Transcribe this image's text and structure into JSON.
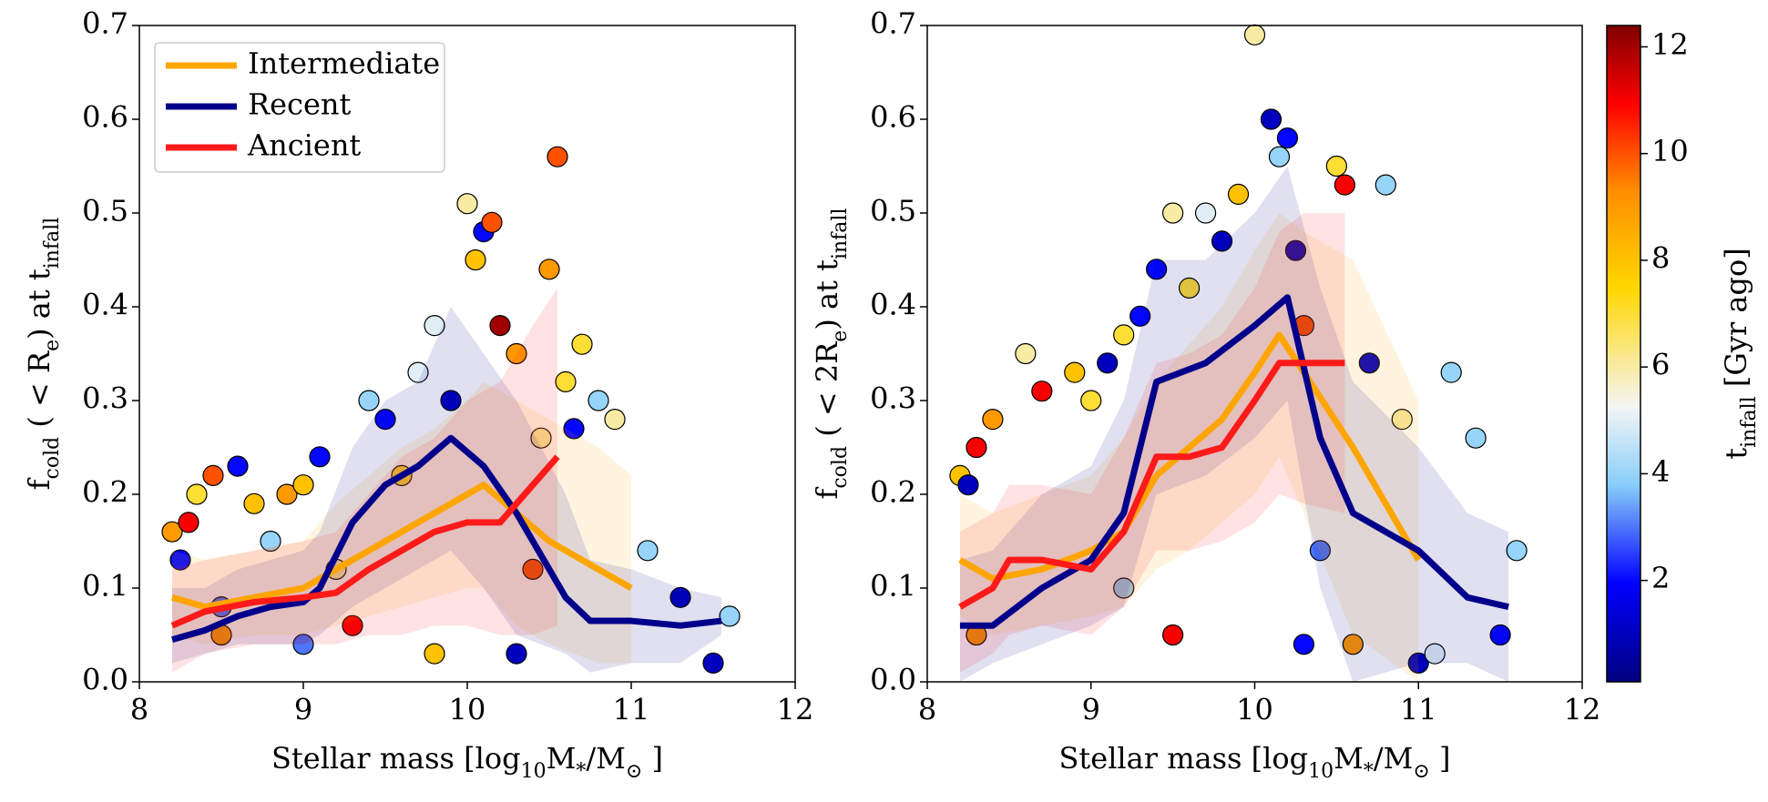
{
  "chart_data": [
    {
      "type": "scatter",
      "xlabel": [
        "Stellar mass [log",
        "10",
        "M",
        "*",
        "/M",
        "⊙",
        " ]"
      ],
      "ylabel": [
        "f",
        "cold",
        " ( < R",
        "e",
        ") at t",
        "infall"
      ],
      "xlim": [
        8,
        12
      ],
      "xticks": [
        8,
        9,
        10,
        11,
        12
      ],
      "ylim": [
        0,
        0.7
      ],
      "yticks": [
        {
          "value": 0,
          "label": "0.0"
        },
        0.1,
        0.2,
        0.3,
        0.4,
        0.5,
        0.6,
        0.7
      ],
      "legend": "upper left",
      "points": {
        "x": [
          8.2,
          8.25,
          8.3,
          8.35,
          8.45,
          8.5,
          8.6,
          8.7,
          8.8,
          8.9,
          9.0,
          9.1,
          9.2,
          9.3,
          9.4,
          9.5,
          9.6,
          9.7,
          9.8,
          9.9,
          10.0,
          10.05,
          10.1,
          10.15,
          10.2,
          10.3,
          10.4,
          10.45,
          10.5,
          10.55,
          10.6,
          10.65,
          10.7,
          10.8,
          10.9,
          11.1,
          11.3,
          11.5,
          11.6,
          10.3,
          9.8,
          8.5,
          9.0
        ],
        "y": [
          0.16,
          0.13,
          0.17,
          0.2,
          0.22,
          0.08,
          0.23,
          0.19,
          0.15,
          0.2,
          0.21,
          0.24,
          0.12,
          0.06,
          0.3,
          0.28,
          0.22,
          0.33,
          0.38,
          0.3,
          0.51,
          0.45,
          0.48,
          0.49,
          0.38,
          0.35,
          0.12,
          0.26,
          0.44,
          0.56,
          0.32,
          0.27,
          0.36,
          0.3,
          0.28,
          0.14,
          0.09,
          0.02,
          0.07,
          0.03,
          0.03,
          0.05,
          0.04
        ],
        "t": [
          9,
          2,
          11,
          7,
          10,
          3,
          2,
          8,
          4,
          9,
          8,
          2,
          6,
          11,
          4,
          2,
          7,
          5,
          5,
          1,
          6,
          8,
          2,
          10,
          12,
          9,
          10,
          6,
          9,
          10,
          7,
          2,
          7,
          4,
          6,
          4,
          1,
          1,
          4,
          1,
          8,
          9,
          3
        ]
      },
      "series": [
        {
          "name": "Intermediate",
          "color": "#ffa500",
          "x": [
            8.2,
            8.4,
            8.7,
            9.0,
            9.2,
            9.4,
            9.6,
            9.8,
            10.0,
            10.1,
            10.3,
            10.5,
            10.8,
            11.0
          ],
          "values": [
            0.09,
            0.08,
            0.09,
            0.1,
            0.12,
            0.14,
            0.16,
            0.18,
            0.2,
            0.21,
            0.18,
            0.15,
            0.12,
            0.1
          ],
          "lower": [
            0.05,
            0.04,
            0.05,
            0.05,
            0.06,
            0.07,
            0.08,
            0.09,
            0.1,
            0.1,
            0.06,
            0.04,
            0.02,
            0.02
          ],
          "upper": [
            0.14,
            0.13,
            0.14,
            0.15,
            0.19,
            0.22,
            0.25,
            0.27,
            0.3,
            0.32,
            0.3,
            0.28,
            0.25,
            0.22
          ]
        },
        {
          "name": "Recent",
          "color": "#00008b",
          "x": [
            8.2,
            8.4,
            8.6,
            8.8,
            9.0,
            9.1,
            9.3,
            9.5,
            9.7,
            9.9,
            10.1,
            10.3,
            10.6,
            10.75,
            11.0,
            11.3,
            11.55
          ],
          "values": [
            0.045,
            0.055,
            0.07,
            0.08,
            0.085,
            0.1,
            0.17,
            0.21,
            0.23,
            0.26,
            0.23,
            0.18,
            0.09,
            0.065,
            0.065,
            0.06,
            0.065
          ],
          "lower": [
            0.02,
            0.03,
            0.04,
            0.04,
            0.04,
            0.05,
            0.08,
            0.1,
            0.12,
            0.14,
            0.1,
            0.05,
            0.03,
            0.01,
            0.02,
            0.02,
            0.05
          ],
          "upper": [
            0.1,
            0.1,
            0.12,
            0.13,
            0.14,
            0.16,
            0.25,
            0.3,
            0.32,
            0.4,
            0.35,
            0.3,
            0.2,
            0.13,
            0.12,
            0.1,
            0.09
          ]
        },
        {
          "name": "Ancient",
          "color": "#ff1a1a",
          "x": [
            8.2,
            8.4,
            8.7,
            9.0,
            9.2,
            9.4,
            9.6,
            9.8,
            10.0,
            10.2,
            10.4,
            10.55
          ],
          "values": [
            0.06,
            0.075,
            0.085,
            0.09,
            0.095,
            0.12,
            0.14,
            0.16,
            0.17,
            0.17,
            0.21,
            0.24
          ],
          "lower": [
            0.01,
            0.03,
            0.04,
            0.04,
            0.04,
            0.05,
            0.05,
            0.06,
            0.06,
            0.05,
            0.05,
            0.06
          ],
          "upper": [
            0.12,
            0.13,
            0.14,
            0.15,
            0.16,
            0.2,
            0.24,
            0.26,
            0.3,
            0.32,
            0.38,
            0.42
          ]
        }
      ]
    },
    {
      "type": "scatter",
      "xlabel": [
        "Stellar mass [log",
        "10",
        "M",
        "*",
        "/M",
        "⊙",
        " ]"
      ],
      "ylabel": [
        "f",
        "cold",
        " ( < 2R",
        "e",
        ") at t",
        "infall"
      ],
      "xlim": [
        8,
        12
      ],
      "xticks": [
        8,
        9,
        10,
        11,
        12
      ],
      "ylim": [
        0,
        0.7
      ],
      "yticks": [
        {
          "value": 0,
          "label": "0.0"
        },
        0.1,
        0.2,
        0.3,
        0.4,
        0.5,
        0.6,
        0.7
      ],
      "points": {
        "x": [
          8.2,
          8.25,
          8.3,
          8.4,
          8.6,
          8.7,
          8.9,
          9.0,
          9.1,
          9.2,
          9.3,
          9.4,
          9.5,
          9.6,
          9.7,
          9.8,
          9.9,
          10.0,
          10.1,
          10.15,
          10.2,
          10.25,
          10.3,
          10.4,
          10.5,
          10.55,
          10.7,
          10.8,
          10.9,
          11.0,
          11.1,
          11.2,
          11.35,
          11.5,
          11.6,
          10.6,
          10.3,
          9.5,
          8.3,
          9.2
        ],
        "y": [
          0.22,
          0.21,
          0.25,
          0.28,
          0.35,
          0.31,
          0.33,
          0.3,
          0.34,
          0.37,
          0.39,
          0.44,
          0.5,
          0.42,
          0.5,
          0.47,
          0.52,
          0.69,
          0.6,
          0.56,
          0.58,
          0.46,
          0.38,
          0.14,
          0.55,
          0.53,
          0.34,
          0.53,
          0.28,
          0.02,
          0.03,
          0.33,
          0.26,
          0.05,
          0.14,
          0.04,
          0.04,
          0.05,
          0.05,
          0.1
        ],
        "t": [
          8,
          1,
          11,
          9,
          6,
          11,
          8,
          7,
          1,
          7,
          2,
          2,
          6,
          7,
          5,
          1,
          8,
          6,
          1,
          4,
          2,
          1,
          10,
          3,
          7,
          11,
          1,
          4,
          6,
          1,
          5,
          4,
          4,
          2,
          4,
          9,
          2,
          11,
          9,
          4
        ]
      },
      "series": [
        {
          "color": "#ffa500",
          "x": [
            8.2,
            8.4,
            8.7,
            9.0,
            9.2,
            9.4,
            9.6,
            9.8,
            10.0,
            10.15,
            10.3,
            10.6,
            11.0
          ],
          "values": [
            0.13,
            0.11,
            0.12,
            0.14,
            0.16,
            0.22,
            0.25,
            0.28,
            0.33,
            0.37,
            0.33,
            0.25,
            0.13
          ],
          "lower": [
            0.07,
            0.05,
            0.06,
            0.07,
            0.08,
            0.12,
            0.14,
            0.17,
            0.2,
            0.24,
            0.18,
            0.05,
            0
          ],
          "upper": [
            0.2,
            0.18,
            0.2,
            0.22,
            0.26,
            0.32,
            0.36,
            0.4,
            0.46,
            0.5,
            0.48,
            0.45,
            0.3
          ]
        },
        {
          "color": "#00008b",
          "x": [
            8.2,
            8.4,
            8.7,
            9.0,
            9.2,
            9.4,
            9.7,
            10.0,
            10.2,
            10.4,
            10.6,
            11.0,
            11.3,
            11.55
          ],
          "values": [
            0.06,
            0.06,
            0.1,
            0.13,
            0.18,
            0.32,
            0.34,
            0.38,
            0.41,
            0.26,
            0.18,
            0.14,
            0.09,
            0.08
          ],
          "lower": [
            0,
            0.02,
            0.04,
            0.06,
            0.08,
            0.2,
            0.22,
            0.26,
            0.3,
            0.1,
            0,
            0.02,
            0.02,
            0
          ],
          "upper": [
            0.13,
            0.14,
            0.2,
            0.23,
            0.3,
            0.45,
            0.45,
            0.5,
            0.55,
            0.42,
            0.32,
            0.25,
            0.18,
            0.16
          ]
        },
        {
          "color": "#ff1a1a",
          "x": [
            8.2,
            8.4,
            8.5,
            8.7,
            9.0,
            9.2,
            9.4,
            9.6,
            9.8,
            10.0,
            10.15,
            10.3,
            10.55
          ],
          "values": [
            0.08,
            0.1,
            0.13,
            0.13,
            0.12,
            0.16,
            0.24,
            0.24,
            0.25,
            0.3,
            0.34,
            0.34,
            0.34
          ],
          "lower": [
            0.01,
            0.03,
            0.05,
            0.06,
            0.05,
            0.08,
            0.14,
            0.14,
            0.15,
            0.17,
            0.2,
            0.19,
            0.18
          ],
          "upper": [
            0.16,
            0.18,
            0.21,
            0.21,
            0.2,
            0.26,
            0.34,
            0.35,
            0.37,
            0.42,
            0.48,
            0.5,
            0.5
          ]
        }
      ]
    }
  ],
  "colorbar": {
    "label": [
      "t",
      "infall",
      " [Gyr ago]"
    ],
    "lim": [
      0.1,
      12.4
    ],
    "ticks": [
      2,
      4,
      6,
      8,
      10,
      12
    ]
  }
}
